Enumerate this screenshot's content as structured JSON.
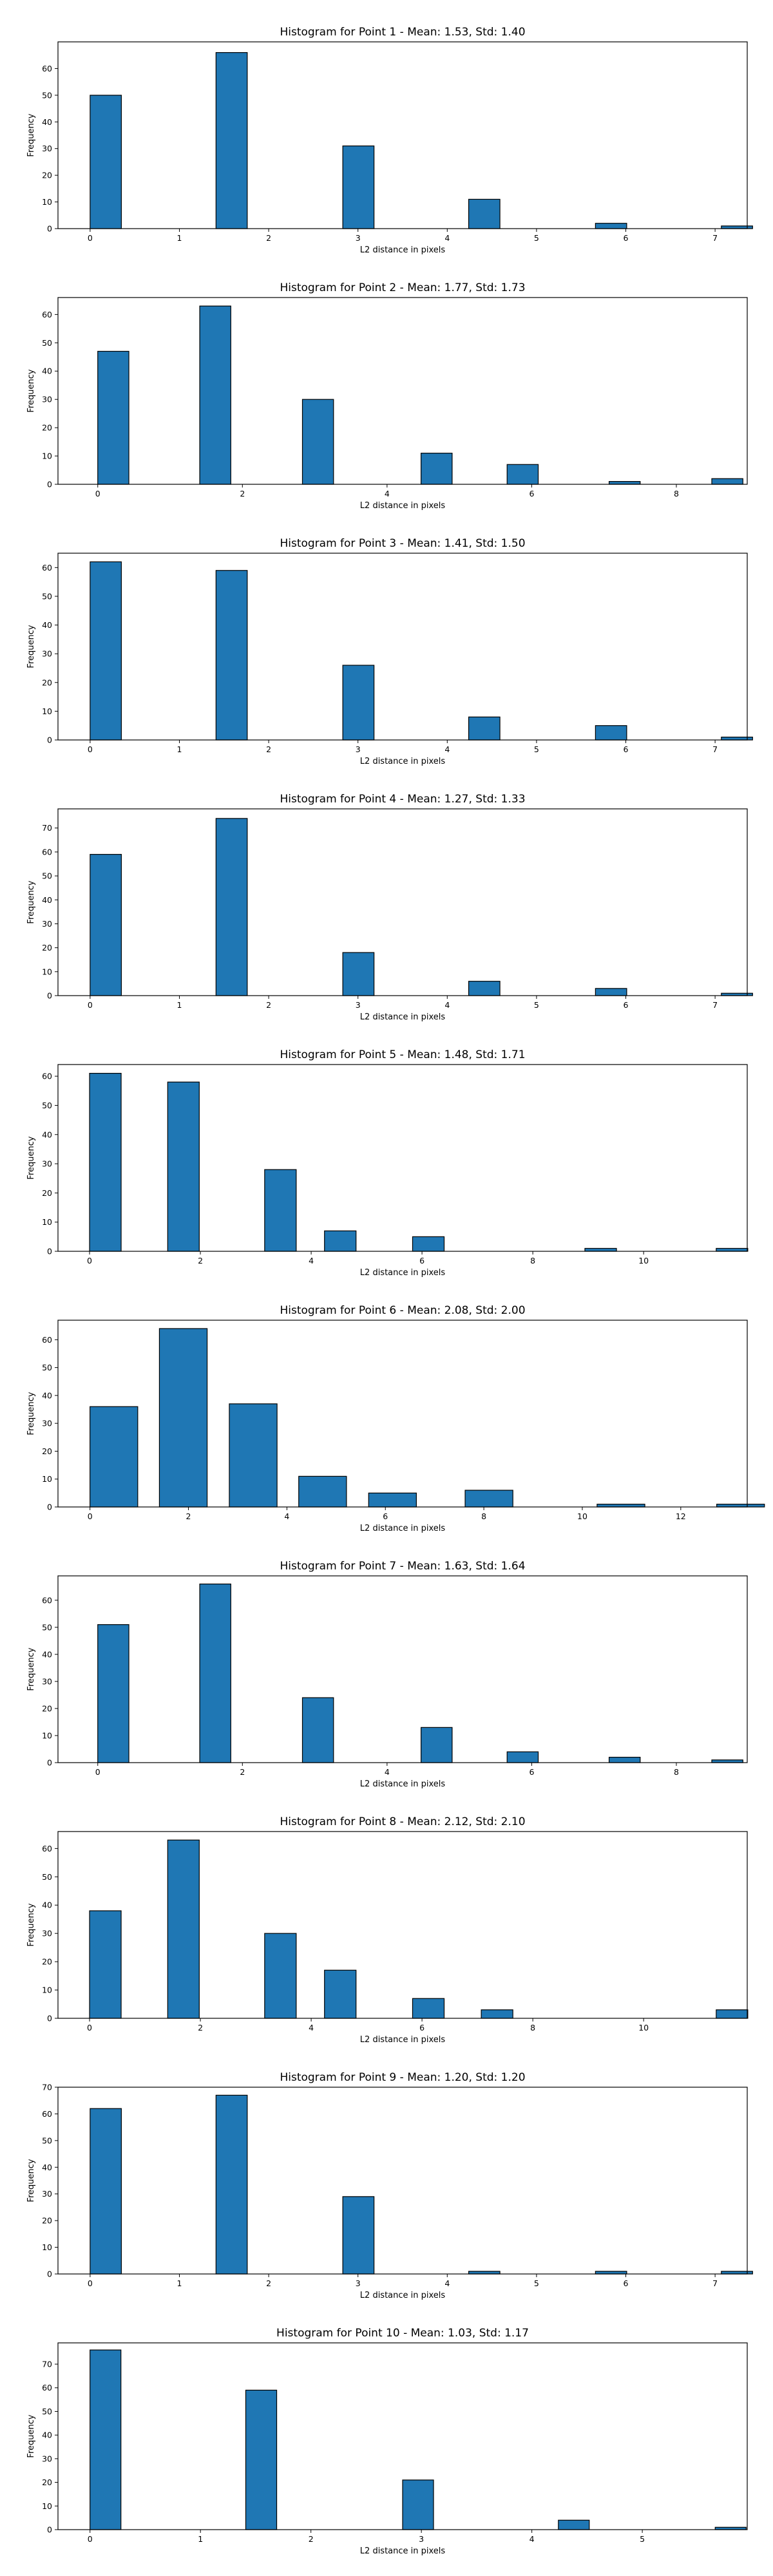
{
  "chart_data": [
    {
      "type": "bar",
      "title": "Histogram for Point 1 - Mean: 1.53, Std: 1.40",
      "xlabel": "L2 distance in pixels",
      "ylabel": "Frequency",
      "xlim": [
        -0.36,
        7.36
      ],
      "ylim": [
        0,
        70
      ],
      "xticks": [
        0,
        1,
        2,
        3,
        4,
        5,
        6,
        7
      ],
      "yticks": [
        0,
        10,
        20,
        30,
        40,
        50,
        60
      ],
      "bin_width": 0.35,
      "bins": [
        {
          "x": 0,
          "v": 50
        },
        {
          "x": 1.41,
          "v": 66
        },
        {
          "x": 2.83,
          "v": 31
        },
        {
          "x": 4.24,
          "v": 11
        },
        {
          "x": 5.66,
          "v": 2
        },
        {
          "x": 7.07,
          "v": 1
        }
      ]
    },
    {
      "type": "bar",
      "title": "Histogram for Point 2 - Mean: 1.77, Std: 1.73",
      "xlabel": "L2 distance in pixels",
      "ylabel": "Frequency",
      "xlim": [
        -0.55,
        8.98
      ],
      "ylim": [
        0,
        66
      ],
      "xticks": [
        0,
        2,
        4,
        6,
        8
      ],
      "yticks": [
        0,
        10,
        20,
        30,
        40,
        50,
        60
      ],
      "bin_width": 0.43,
      "bins": [
        {
          "x": 0,
          "v": 47
        },
        {
          "x": 1.41,
          "v": 63
        },
        {
          "x": 2.83,
          "v": 30
        },
        {
          "x": 4.47,
          "v": 11
        },
        {
          "x": 5.66,
          "v": 7
        },
        {
          "x": 7.07,
          "v": 1
        },
        {
          "x": 8.49,
          "v": 2
        }
      ]
    },
    {
      "type": "bar",
      "title": "Histogram for Point 3 - Mean: 1.41, Std: 1.50",
      "xlabel": "L2 distance in pixels",
      "ylabel": "Frequency",
      "xlim": [
        -0.36,
        7.36
      ],
      "ylim": [
        0,
        65
      ],
      "xticks": [
        0,
        1,
        2,
        3,
        4,
        5,
        6,
        7
      ],
      "yticks": [
        0,
        10,
        20,
        30,
        40,
        50,
        60
      ],
      "bin_width": 0.35,
      "bins": [
        {
          "x": 0,
          "v": 62
        },
        {
          "x": 1.41,
          "v": 59
        },
        {
          "x": 2.83,
          "v": 26
        },
        {
          "x": 4.24,
          "v": 8
        },
        {
          "x": 5.66,
          "v": 5
        },
        {
          "x": 7.07,
          "v": 1
        }
      ]
    },
    {
      "type": "bar",
      "title": "Histogram for Point 4 - Mean: 1.27, Std: 1.33",
      "xlabel": "L2 distance in pixels",
      "ylabel": "Frequency",
      "xlim": [
        -0.36,
        7.36
      ],
      "ylim": [
        0,
        78
      ],
      "xticks": [
        0,
        1,
        2,
        3,
        4,
        5,
        6,
        7
      ],
      "yticks": [
        0,
        10,
        20,
        30,
        40,
        50,
        60,
        70
      ],
      "bin_width": 0.35,
      "bins": [
        {
          "x": 0,
          "v": 59
        },
        {
          "x": 1.41,
          "v": 74
        },
        {
          "x": 2.83,
          "v": 18
        },
        {
          "x": 4.24,
          "v": 6
        },
        {
          "x": 5.66,
          "v": 3
        },
        {
          "x": 7.07,
          "v": 1
        }
      ]
    },
    {
      "type": "bar",
      "title": "Histogram for Point 5 - Mean: 1.48, Std: 1.71",
      "xlabel": "L2 distance in pixels",
      "ylabel": "Frequency",
      "xlim": [
        -0.57,
        11.87
      ],
      "ylim": [
        0,
        64
      ],
      "xticks": [
        0,
        2,
        4,
        6,
        8,
        10
      ],
      "yticks": [
        0,
        10,
        20,
        30,
        40,
        50,
        60
      ],
      "bin_width": 0.57,
      "bins": [
        {
          "x": 0,
          "v": 61
        },
        {
          "x": 1.41,
          "v": 58
        },
        {
          "x": 3.16,
          "v": 28
        },
        {
          "x": 4.24,
          "v": 7
        },
        {
          "x": 5.83,
          "v": 5
        },
        {
          "x": 8.94,
          "v": 1
        },
        {
          "x": 11.31,
          "v": 1
        }
      ]
    },
    {
      "type": "bar",
      "title": "Histogram for Point 6 - Mean: 2.08, Std: 2.00",
      "xlabel": "L2 distance in pixels",
      "ylabel": "Frequency",
      "xlim": [
        -0.65,
        13.35
      ],
      "ylim": [
        0,
        67
      ],
      "xticks": [
        0,
        2,
        4,
        6,
        8,
        10,
        12
      ],
      "yticks": [
        0,
        10,
        20,
        30,
        40,
        50,
        60
      ],
      "bin_width": 0.97,
      "bins": [
        {
          "x": 0,
          "v": 36
        },
        {
          "x": 1.41,
          "v": 64
        },
        {
          "x": 2.83,
          "v": 37
        },
        {
          "x": 4.24,
          "v": 11
        },
        {
          "x": 5.66,
          "v": 5
        },
        {
          "x": 7.62,
          "v": 6
        },
        {
          "x": 10.3,
          "v": 1
        },
        {
          "x": 12.73,
          "v": 1
        }
      ]
    },
    {
      "type": "bar",
      "title": "Histogram for Point 7 - Mean: 1.63, Std: 1.64",
      "xlabel": "L2 distance in pixels",
      "ylabel": "Frequency",
      "xlim": [
        -0.55,
        8.98
      ],
      "ylim": [
        0,
        69
      ],
      "xticks": [
        0,
        2,
        4,
        6,
        8
      ],
      "yticks": [
        0,
        10,
        20,
        30,
        40,
        50,
        60
      ],
      "bin_width": 0.43,
      "bins": [
        {
          "x": 0,
          "v": 51
        },
        {
          "x": 1.41,
          "v": 66
        },
        {
          "x": 2.83,
          "v": 24
        },
        {
          "x": 4.47,
          "v": 13
        },
        {
          "x": 5.66,
          "v": 4
        },
        {
          "x": 7.07,
          "v": 2
        },
        {
          "x": 8.49,
          "v": 1
        }
      ]
    },
    {
      "type": "bar",
      "title": "Histogram for Point 8 - Mean: 2.12, Std: 2.10",
      "xlabel": "L2 distance in pixels",
      "ylabel": "Frequency",
      "xlim": [
        -0.57,
        11.87
      ],
      "ylim": [
        0,
        66
      ],
      "xticks": [
        0,
        2,
        4,
        6,
        8,
        10
      ],
      "yticks": [
        0,
        10,
        20,
        30,
        40,
        50,
        60
      ],
      "bin_width": 0.57,
      "bins": [
        {
          "x": 0,
          "v": 38
        },
        {
          "x": 1.41,
          "v": 63
        },
        {
          "x": 3.16,
          "v": 30
        },
        {
          "x": 4.24,
          "v": 17
        },
        {
          "x": 5.83,
          "v": 7
        },
        {
          "x": 7.07,
          "v": 3
        },
        {
          "x": 11.31,
          "v": 3
        }
      ]
    },
    {
      "type": "bar",
      "title": "Histogram for Point 9 - Mean: 1.20, Std: 1.20",
      "xlabel": "L2 distance in pixels",
      "ylabel": "Frequency",
      "xlim": [
        -0.36,
        7.36
      ],
      "ylim": [
        0,
        70
      ],
      "xticks": [
        0,
        1,
        2,
        3,
        4,
        5,
        6,
        7
      ],
      "yticks": [
        0,
        10,
        20,
        30,
        40,
        50,
        60,
        70
      ],
      "bin_width": 0.35,
      "bins": [
        {
          "x": 0,
          "v": 62
        },
        {
          "x": 1.41,
          "v": 67
        },
        {
          "x": 2.83,
          "v": 29
        },
        {
          "x": 4.24,
          "v": 1
        },
        {
          "x": 5.66,
          "v": 1
        },
        {
          "x": 7.07,
          "v": 1
        }
      ]
    },
    {
      "type": "bar",
      "title": "Histogram for Point 10 - Mean: 1.03, Std: 1.17",
      "xlabel": "L2 distance in pixels",
      "ylabel": "Frequency",
      "xlim": [
        -0.29,
        5.95
      ],
      "ylim": [
        0,
        79
      ],
      "xticks": [
        0,
        1,
        2,
        3,
        4,
        5
      ],
      "yticks": [
        0,
        10,
        20,
        30,
        40,
        50,
        60,
        70
      ],
      "bin_width": 0.28,
      "bins": [
        {
          "x": 0,
          "v": 76
        },
        {
          "x": 1.41,
          "v": 59
        },
        {
          "x": 2.83,
          "v": 21
        },
        {
          "x": 4.24,
          "v": 4
        },
        {
          "x": 5.66,
          "v": 1
        }
      ]
    }
  ]
}
